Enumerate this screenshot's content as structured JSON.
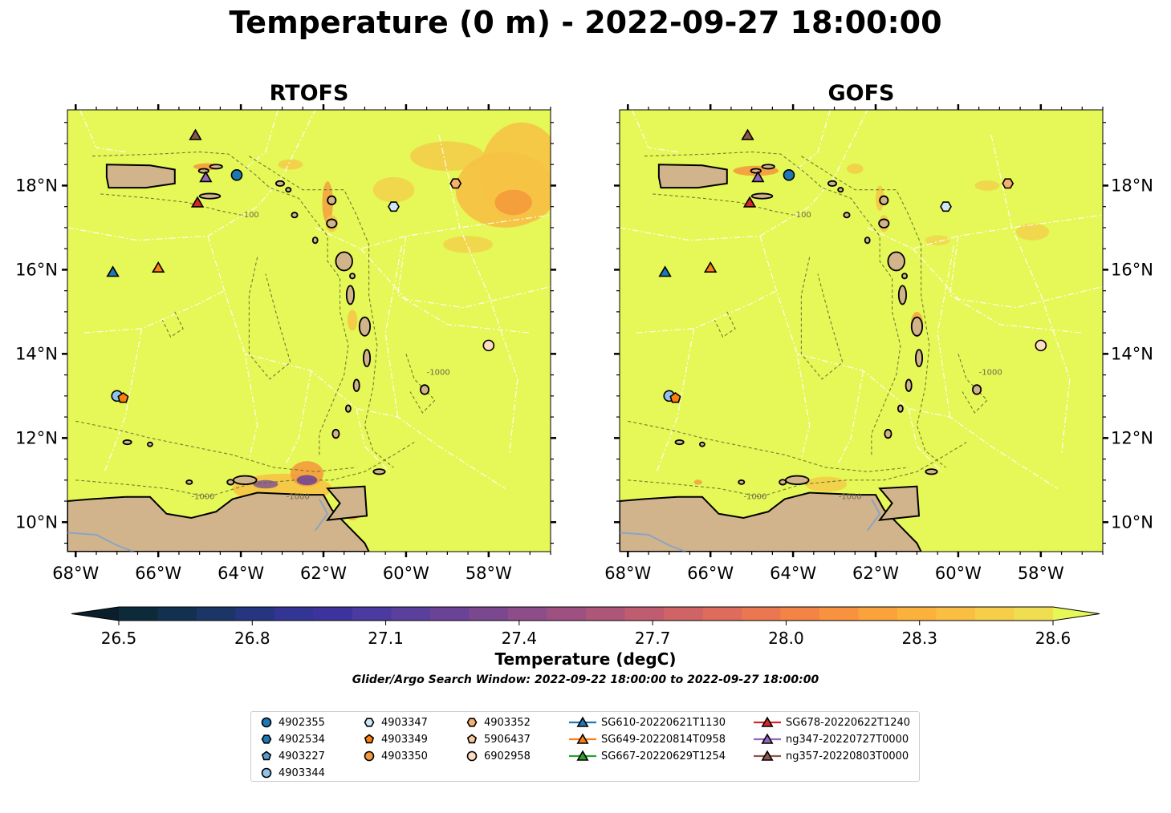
{
  "title": "Temperature (0 m) - 2022-09-27 18:00:00",
  "panels": [
    {
      "title": "RTOFS"
    },
    {
      "title": "GOFS"
    }
  ],
  "map": {
    "lon_range": [
      -68.2,
      -56.5
    ],
    "lat_range": [
      9.3,
      19.8
    ],
    "lon_ticks": [
      "68°W",
      "66°W",
      "64°W",
      "62°W",
      "60°W",
      "58°W"
    ],
    "lat_ticks": [
      "18°N",
      "16°N",
      "14°N",
      "12°N",
      "10°N"
    ],
    "contour_labels": [
      "-100",
      "-1000",
      "-1000",
      "-1000"
    ],
    "colors": {
      "ocean": "#e6f758",
      "land": "#d2b48c",
      "warm": "#f6c244",
      "warmer": "#f49a3c",
      "cool": "#6b3fa0",
      "contour": "#556b2f"
    }
  },
  "colorbar": {
    "ticks": [
      "26.5",
      "26.8",
      "27.1",
      "27.4",
      "27.7",
      "28.0",
      "28.3",
      "28.6"
    ],
    "label": "Temperature (degC)",
    "colors": [
      "#0d2a3a",
      "#12304f",
      "#1a3566",
      "#25357f",
      "#333595",
      "#3e339e",
      "#4b3a9f",
      "#5a3f9c",
      "#6b4396",
      "#7b4890",
      "#8d4d88",
      "#9e5180",
      "#ae5678",
      "#c05c70",
      "#cf6366",
      "#de6b5c",
      "#ea7750",
      "#f38446",
      "#f8923f",
      "#fba23c",
      "#fcb13d",
      "#fabf42",
      "#f6ce49",
      "#efdd52"
    ],
    "min_color": "#0a1e2c",
    "max_color": "#e6f758"
  },
  "search_window": "Glider/Argo Search Window: 2022-09-22 18:00:00 to 2022-09-27 18:00:00",
  "legend": {
    "columns": [
      [
        {
          "label": "4902355",
          "marker": "circle",
          "color": "#1f77b4"
        },
        {
          "label": "4902534",
          "marker": "hexagon",
          "color": "#1f77b4"
        },
        {
          "label": "4903227",
          "marker": "pentagon",
          "color": "#5b9bd5"
        },
        {
          "label": "4903344",
          "marker": "circle",
          "color": "#8fc3eb"
        }
      ],
      [
        {
          "label": "4903347",
          "marker": "hexagon",
          "color": "#cfe6f7"
        },
        {
          "label": "4903349",
          "marker": "pentagon",
          "color": "#ff7f0e"
        },
        {
          "label": "4903350",
          "marker": "circle",
          "color": "#f59a3a"
        }
      ],
      [
        {
          "label": "4903352",
          "marker": "hexagon",
          "color": "#f5b071"
        },
        {
          "label": "5906437",
          "marker": "pentagon",
          "color": "#fbc99a"
        },
        {
          "label": "6902958",
          "marker": "circle",
          "color": "#fddcc2"
        }
      ],
      [
        {
          "label": "SG610-20220621T1130",
          "marker": "triangle-line",
          "color": "#1f77b4"
        },
        {
          "label": "SG649-20220814T0958",
          "marker": "triangle-line",
          "color": "#ff7f0e"
        },
        {
          "label": "SG667-20220629T1254",
          "marker": "triangle-line",
          "color": "#2ca02c"
        }
      ],
      [
        {
          "label": "SG678-20220622T1240",
          "marker": "triangle-line",
          "color": "#d62728"
        },
        {
          "label": "ng347-20220727T0000",
          "marker": "triangle-line",
          "color": "#9467bd"
        },
        {
          "label": "ng357-20220803T0000",
          "marker": "triangle-line",
          "color": "#8c564b"
        }
      ]
    ]
  },
  "observations": [
    {
      "id": "4902355",
      "marker": "circle",
      "color": "#1f77b4",
      "lon": -64.1,
      "lat": 18.25
    },
    {
      "id": "4903347",
      "marker": "hexagon",
      "color": "#cfe6f7",
      "lon": -60.3,
      "lat": 17.5
    },
    {
      "id": "4903352",
      "marker": "hexagon",
      "color": "#f5b071",
      "lon": -58.8,
      "lat": 18.05
    },
    {
      "id": "6902958",
      "marker": "circle",
      "color": "#fddcc2",
      "lon": -58.0,
      "lat": 14.2
    },
    {
      "id": "4903344",
      "marker": "circle",
      "color": "#8fc3eb",
      "lon": -67.0,
      "lat": 13.0
    },
    {
      "id": "4903349",
      "marker": "pentagon",
      "color": "#ff7f0e",
      "lon": -66.85,
      "lat": 12.95
    },
    {
      "id": "SG610-20220621T1130",
      "marker": "triangle",
      "color": "#1f77b4",
      "lon": -67.1,
      "lat": 15.95
    },
    {
      "id": "SG649-20220814T0958",
      "marker": "triangle",
      "color": "#ff7f0e",
      "lon": -66.0,
      "lat": 16.05
    },
    {
      "id": "SG678-20220622T1240",
      "marker": "triangle",
      "color": "#d62728",
      "lon": -65.05,
      "lat": 17.6
    },
    {
      "id": "ng347-20220727T0000",
      "marker": "triangle",
      "color": "#9467bd",
      "lon": -64.85,
      "lat": 18.2
    },
    {
      "id": "ng357-20220803T0000",
      "marker": "triangle",
      "color": "#8c564b",
      "lon": -65.1,
      "lat": 19.2
    }
  ]
}
